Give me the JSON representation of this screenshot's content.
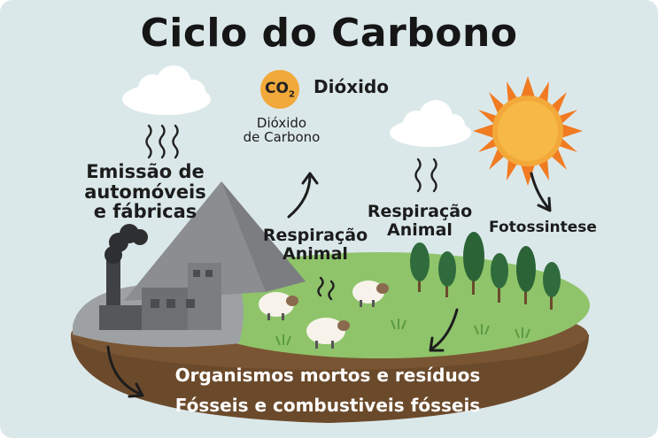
{
  "title": "Ciclo do Carbono",
  "co2": {
    "badge": "CO",
    "badge_subscript": "2",
    "label": "Dióxido",
    "caption_line1": "Dióxido",
    "caption_line2": "de Carbono"
  },
  "labels": {
    "emission_line1": "Emissão de",
    "emission_line2": "automóveis",
    "emission_line3": "e fábricas",
    "respiration_left_line1": "Respiração",
    "respiration_left_line2": "Animal",
    "respiration_right_line1": "Respiração",
    "respiration_right_line2": "Animal",
    "photosynthesis": "Fotossintese"
  },
  "soil": {
    "line1": "Organismos mortos e resíduos",
    "line2": "Fósseis e combustiveis fósseis"
  },
  "colors": {
    "background": "#dbe8ea",
    "grass": "#8fc46a",
    "soil": "#6b4a2b",
    "sun": "#f0a62e",
    "tree": "#2f6b3c",
    "factory": "#6d6f72"
  }
}
